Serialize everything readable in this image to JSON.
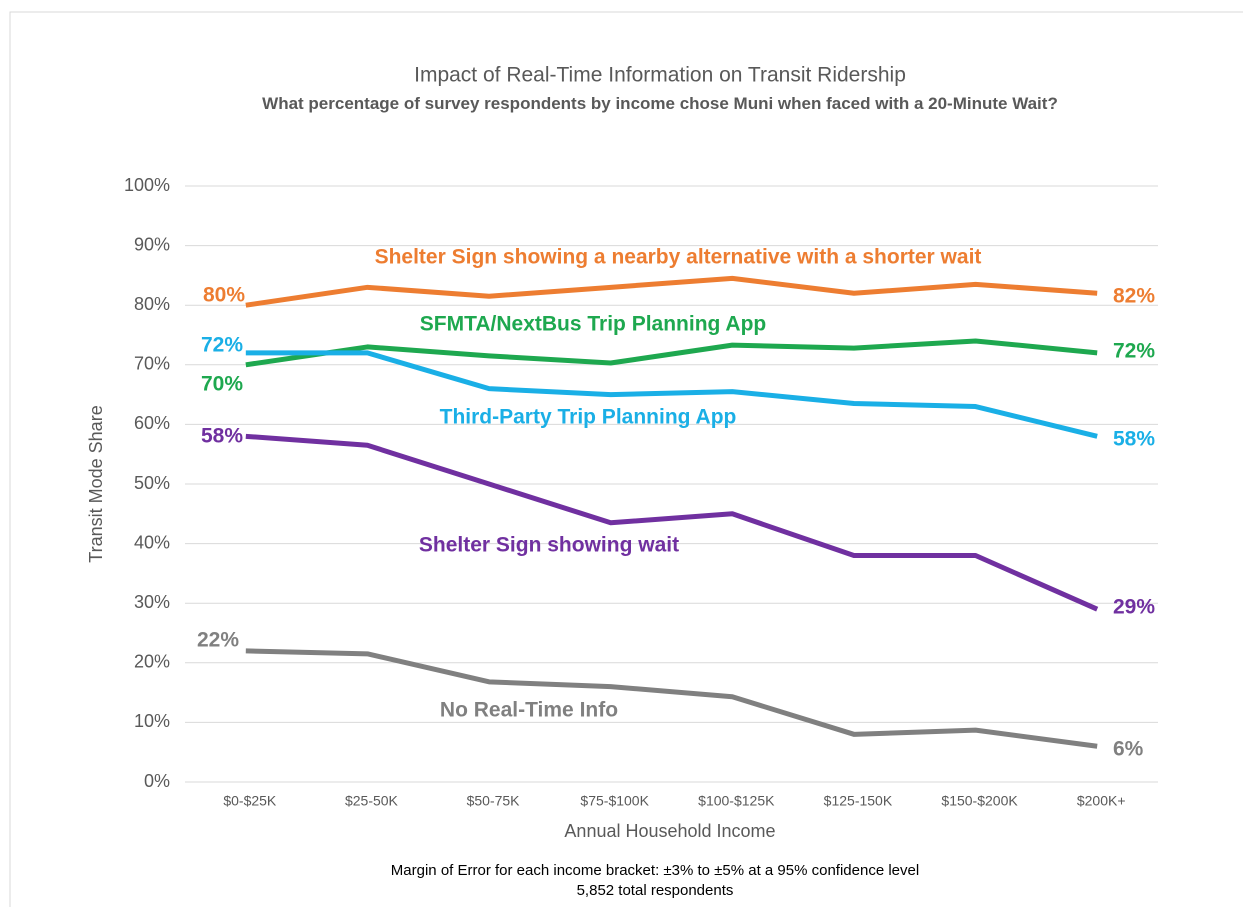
{
  "chart_data": {
    "type": "line",
    "title": "Impact of Real-Time Information on Transit Ridership",
    "subtitle": "What percentage of survey respondents by income chose Muni when faced with a 20-Minute Wait?",
    "xlabel": "Annual Household Income",
    "ylabel": "Transit Mode Share",
    "notes": [
      "Margin of Error for each income bracket: ±3% to ±5% at a 95% confidence level",
      "5,852 total respondents"
    ],
    "categories": [
      "$0-$25K",
      "$25-50K",
      "$50-75K",
      "$75-$100K",
      "$100-$125K",
      "$125-150K",
      "$150-$200K",
      "$200K+"
    ],
    "ylim": [
      0,
      100
    ],
    "yticks": [
      {
        "value": 0,
        "label": "0%"
      },
      {
        "value": 10,
        "label": "10%"
      },
      {
        "value": 20,
        "label": "20%"
      },
      {
        "value": 30,
        "label": "30%"
      },
      {
        "value": 40,
        "label": "40%"
      },
      {
        "value": 50,
        "label": "50%"
      },
      {
        "value": 60,
        "label": "60%"
      },
      {
        "value": 70,
        "label": "70%"
      },
      {
        "value": 80,
        "label": "80%"
      },
      {
        "value": 90,
        "label": "90%"
      },
      {
        "value": 100,
        "label": "100%"
      }
    ],
    "grid": true,
    "series": [
      {
        "name": "Shelter Sign showing a nearby alternative with a shorter wait",
        "color": "#ed7d31",
        "values": [
          80,
          83,
          81.5,
          83,
          84.5,
          82,
          83.5,
          82
        ],
        "value_labels": [
          "80%",
          null,
          null,
          null,
          null,
          null,
          null,
          "82%"
        ]
      },
      {
        "name": "SFMTA/NextBus Trip Planning App",
        "color": "#1ea84f",
        "values": [
          70,
          73,
          71.5,
          70.3,
          73.3,
          72.8,
          74,
          72
        ],
        "value_labels": [
          "70%",
          null,
          null,
          null,
          null,
          null,
          null,
          "72%"
        ]
      },
      {
        "name": "Third-Party Trip Planning App",
        "color": "#1aafe6",
        "values": [
          72,
          72,
          66,
          65,
          65.5,
          63.5,
          63,
          58
        ],
        "value_labels": [
          "72%",
          null,
          null,
          null,
          null,
          null,
          null,
          "58%"
        ]
      },
      {
        "name": "Shelter Sign showing wait",
        "color": "#7030a0",
        "values": [
          58,
          56.5,
          50,
          43.5,
          45,
          38,
          38,
          29
        ],
        "value_labels": [
          "58%",
          null,
          null,
          null,
          null,
          null,
          null,
          "29%"
        ]
      },
      {
        "name": "No Real-Time Info",
        "color": "#808080",
        "values": [
          22,
          21.5,
          16.8,
          16,
          14.3,
          8,
          8.7,
          6
        ],
        "value_labels": [
          "22%",
          null,
          null,
          null,
          null,
          null,
          null,
          "6%"
        ]
      }
    ]
  }
}
